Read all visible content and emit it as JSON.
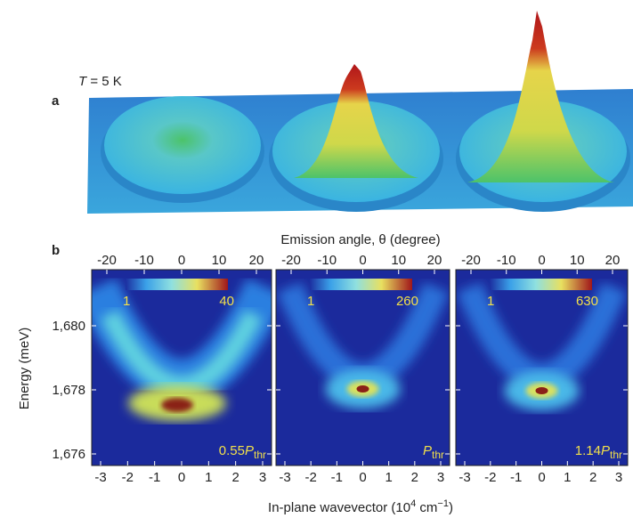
{
  "panel_a": {
    "label": "a",
    "temperature": {
      "symbol": "T",
      "value": "= 5 K"
    }
  },
  "panel_b": {
    "label": "b",
    "top_axis_label": "Emission angle, θ (degree)",
    "bottom_axis_label": {
      "text": "In-plane wavevector (10",
      "exponent": "4",
      "unit": " cm",
      "unit_exponent": "−1",
      "close": ")"
    },
    "y_axis_label": "Energy (meV)",
    "y_ticks": [
      "1,680",
      "1,678",
      "1,676"
    ],
    "top_ticks": [
      "-20",
      "-10",
      "0",
      "10",
      "20"
    ],
    "bottom_ticks": [
      "-3",
      "-2",
      "-1",
      "0",
      "1",
      "2",
      "3"
    ],
    "maps": [
      {
        "colorbar_min": "1",
        "colorbar_max": "40",
        "power": {
          "prefix": "0.55",
          "symbol": "P",
          "subscript": "thr"
        }
      },
      {
        "colorbar_min": "1",
        "colorbar_max": "260",
        "power": {
          "prefix": "",
          "symbol": "P",
          "subscript": "thr"
        }
      },
      {
        "colorbar_min": "1",
        "colorbar_max": "630",
        "power": {
          "prefix": "1.14",
          "symbol": "P",
          "subscript": "thr"
        }
      }
    ]
  }
}
